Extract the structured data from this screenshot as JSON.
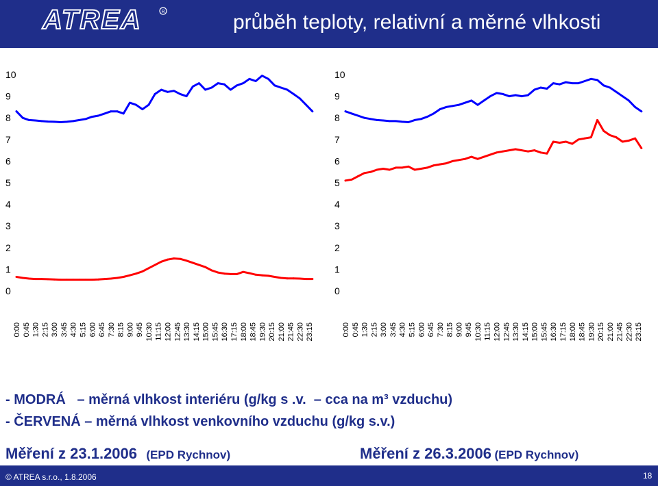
{
  "header": {
    "logo_text": "ATREA",
    "title": "průběh teploty, relativní a měrné vlhkosti"
  },
  "legend": {
    "line1_dash": "-",
    "line1_color_word": "MODRÁ",
    "line1_dash2": "–",
    "line1_text": "měrná vlhkost interiéru (g/kg s .v.",
    "line1_dash3": "–",
    "line1_tail": "cca na m³ vzduchu)",
    "line2_dash": "-",
    "line2_color_word": "ČERVENÁ",
    "line2_dash2": "–",
    "line2_text": "měrná vlhkost venkovního vzduchu (g/kg s.v.)"
  },
  "captions": {
    "left_main": "Měření z 23.1.2006",
    "left_sub": "(EPD Rychnov)",
    "right_main": "Měření z 26.3.2006",
    "right_sub": "(EPD Rychnov)"
  },
  "footer": {
    "copyright": "© ATREA s.r.o., 1.8.2006",
    "page": "18"
  },
  "colors": {
    "background": "#1f2e8a",
    "series_blue": "#0000ff",
    "series_red": "#ff0000"
  },
  "chart_data": [
    {
      "type": "line",
      "title": "",
      "xlabel": "",
      "ylabel": "",
      "ylim": [
        0,
        10
      ],
      "yticks": [
        0,
        1,
        2,
        3,
        4,
        5,
        6,
        7,
        8,
        9,
        10
      ],
      "grid": false,
      "x_tick_labels": [
        "0:00",
        "0:45",
        "1:30",
        "2:15",
        "3:00",
        "3:45",
        "4:30",
        "5:15",
        "6:00",
        "6:45",
        "7:30",
        "8:15",
        "9:00",
        "9:45",
        "10:30",
        "11:15",
        "12:00",
        "12:45",
        "13:30",
        "14:15",
        "15:00",
        "15:45",
        "16:30",
        "17:15",
        "18:00",
        "18:45",
        "19:30",
        "20:15",
        "21:00",
        "21:45",
        "22:30",
        "23:15"
      ],
      "x_hours": [
        0,
        0.5,
        1,
        1.5,
        2,
        2.5,
        3,
        3.5,
        4,
        4.5,
        5,
        5.5,
        6,
        6.5,
        7,
        7.5,
        8,
        8.5,
        9,
        9.5,
        10,
        10.5,
        11,
        11.5,
        12,
        12.5,
        13,
        13.5,
        14,
        14.5,
        15,
        15.5,
        16,
        16.5,
        17,
        17.5,
        18,
        18.5,
        19,
        19.5,
        20,
        20.5,
        21,
        21.5,
        22,
        22.5,
        23,
        23.5
      ],
      "series": [
        {
          "color": "blue",
          "values": [
            8.3,
            8.0,
            7.9,
            7.88,
            7.85,
            7.83,
            7.82,
            7.8,
            7.82,
            7.85,
            7.9,
            7.95,
            8.05,
            8.1,
            8.2,
            8.3,
            8.3,
            8.2,
            8.7,
            8.6,
            8.4,
            8.6,
            9.1,
            9.3,
            9.2,
            9.25,
            9.1,
            9.0,
            9.45,
            9.6,
            9.3,
            9.4,
            9.6,
            9.55,
            9.3,
            9.5,
            9.6,
            9.8,
            9.7,
            9.95,
            9.8,
            9.5,
            9.4,
            9.3,
            9.1,
            8.9,
            8.6,
            8.3
          ]
        },
        {
          "color": "red",
          "values": [
            0.65,
            0.6,
            0.57,
            0.55,
            0.55,
            0.54,
            0.53,
            0.52,
            0.52,
            0.52,
            0.52,
            0.52,
            0.52,
            0.53,
            0.55,
            0.57,
            0.6,
            0.65,
            0.72,
            0.8,
            0.9,
            1.05,
            1.2,
            1.35,
            1.45,
            1.5,
            1.48,
            1.4,
            1.3,
            1.2,
            1.1,
            0.95,
            0.85,
            0.8,
            0.78,
            0.78,
            0.88,
            0.82,
            0.75,
            0.72,
            0.7,
            0.65,
            0.6,
            0.58,
            0.58,
            0.57,
            0.55,
            0.55
          ]
        }
      ]
    },
    {
      "type": "line",
      "title": "",
      "xlabel": "",
      "ylabel": "",
      "ylim": [
        0,
        10
      ],
      "yticks": [
        0,
        1,
        2,
        3,
        4,
        5,
        6,
        7,
        8,
        9,
        10
      ],
      "grid": false,
      "x_tick_labels": [
        "0:00",
        "0:45",
        "1:30",
        "2:15",
        "3:00",
        "3:45",
        "4:30",
        "5:15",
        "6:00",
        "6:45",
        "7:30",
        "8:15",
        "9:00",
        "9:45",
        "10:30",
        "11:15",
        "12:00",
        "12:45",
        "13:30",
        "14:15",
        "15:00",
        "15:45",
        "16:30",
        "17:15",
        "18:00",
        "18:45",
        "19:30",
        "20:15",
        "21:00",
        "21:45",
        "22:30",
        "23:15"
      ],
      "x_hours": [
        0,
        0.5,
        1,
        1.5,
        2,
        2.5,
        3,
        3.5,
        4,
        4.5,
        5,
        5.5,
        6,
        6.5,
        7,
        7.5,
        8,
        8.5,
        9,
        9.5,
        10,
        10.5,
        11,
        11.5,
        12,
        12.5,
        13,
        13.5,
        14,
        14.5,
        15,
        15.5,
        16,
        16.5,
        17,
        17.5,
        18,
        18.5,
        19,
        19.5,
        20,
        20.5,
        21,
        21.5,
        22,
        22.5,
        23,
        23.5
      ],
      "series": [
        {
          "color": "blue",
          "values": [
            8.3,
            8.2,
            8.1,
            8.0,
            7.95,
            7.9,
            7.88,
            7.85,
            7.85,
            7.82,
            7.8,
            7.9,
            7.95,
            8.05,
            8.2,
            8.4,
            8.5,
            8.55,
            8.6,
            8.7,
            8.8,
            8.6,
            8.8,
            9.0,
            9.15,
            9.1,
            9.0,
            9.05,
            9.0,
            9.05,
            9.3,
            9.4,
            9.35,
            9.6,
            9.55,
            9.65,
            9.6,
            9.6,
            9.7,
            9.8,
            9.75,
            9.5,
            9.4,
            9.2,
            9.0,
            8.8,
            8.5,
            8.3
          ]
        },
        {
          "color": "red",
          "values": [
            5.1,
            5.15,
            5.3,
            5.45,
            5.5,
            5.6,
            5.65,
            5.6,
            5.7,
            5.7,
            5.75,
            5.6,
            5.65,
            5.7,
            5.8,
            5.85,
            5.9,
            6.0,
            6.05,
            6.1,
            6.2,
            6.1,
            6.2,
            6.3,
            6.4,
            6.45,
            6.5,
            6.55,
            6.5,
            6.45,
            6.5,
            6.4,
            6.35,
            6.9,
            6.85,
            6.9,
            6.8,
            7.0,
            7.05,
            7.1,
            7.9,
            7.4,
            7.2,
            7.1,
            6.9,
            6.95,
            7.05,
            6.6
          ]
        }
      ]
    }
  ]
}
